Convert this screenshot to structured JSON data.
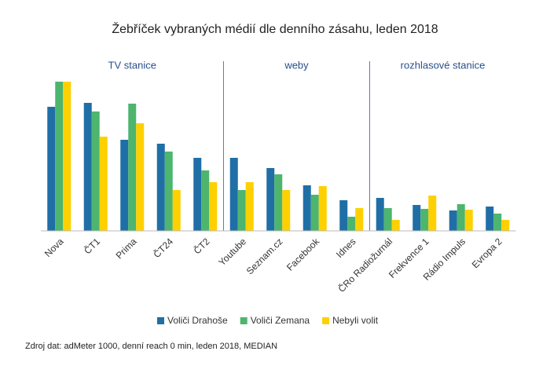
{
  "chart_data": {
    "type": "bar",
    "title": "Žebříček vybraných médií dle denního zásahu, leden 2018",
    "groups": [
      {
        "name": "TV stanice",
        "categories": [
          "Nova",
          "ČT1",
          "Prima",
          "ČT24",
          "ČT2"
        ]
      },
      {
        "name": "weby",
        "categories": [
          "Youtube",
          "Seznam.cz",
          "Facebook",
          "Idnes"
        ]
      },
      {
        "name": "rozhlasové stanice",
        "categories": [
          "ČRo Radiožurnál",
          "Frekvence 1",
          "Rádio Impuls",
          "Evropa 2"
        ]
      }
    ],
    "series": [
      {
        "name": "Voliči Drahoše",
        "color": "#1f6fa6",
        "values": [
          158,
          163,
          116,
          111,
          93,
          93,
          80,
          58,
          39,
          42,
          33,
          26,
          31
        ]
      },
      {
        "name": "Voliči Zemana",
        "color": "#4db56e",
        "values": [
          190,
          152,
          162,
          101,
          77,
          52,
          72,
          46,
          18,
          29,
          28,
          34,
          22
        ]
      },
      {
        "name": "Nebyli volit",
        "color": "#ffd000",
        "values": [
          190,
          120,
          137,
          52,
          62,
          62,
          52,
          57,
          29,
          14,
          45,
          27,
          14
        ]
      }
    ],
    "source": "Zdroj dat: adMeter 1000, denní  reach 0 min, leden 2018, MEDIAN"
  }
}
